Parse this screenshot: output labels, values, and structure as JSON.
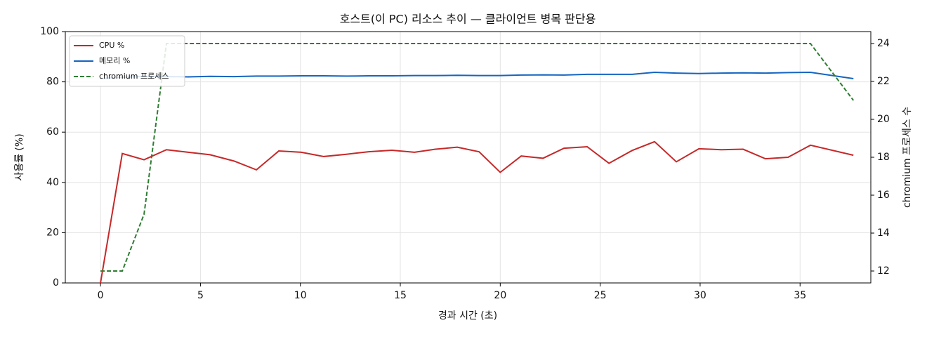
{
  "chart_data": {
    "type": "line",
    "title": "호스트(이 PC) 리소스 추이 — 클라이언트 병목 판단용",
    "x_label": "경과 시간 (초)",
    "y_label": "사용률 (%)",
    "y2_label": "chromium 프로세스 수",
    "x": [
      0,
      1.09,
      2.18,
      3.3,
      4.39,
      5.48,
      6.68,
      7.8,
      8.92,
      10.05,
      11.17,
      12.3,
      13.42,
      14.58,
      15.71,
      16.76,
      17.85,
      18.94,
      20.0,
      21.05,
      22.14,
      23.19,
      24.35,
      25.44,
      26.6,
      27.72,
      28.81,
      29.94,
      31.06,
      32.15,
      33.27,
      34.4,
      35.52,
      37.67
    ],
    "series": [
      {
        "name": "CPU %",
        "color": "#c62828",
        "linestyle": "solid",
        "values": [
          0,
          51.5,
          49,
          53,
          52,
          51,
          48.5,
          45,
          52.5,
          52,
          50.3,
          51.2,
          52.2,
          52.8,
          52,
          53.2,
          54,
          52.2,
          44,
          50.5,
          49.6,
          53.6,
          54.2,
          47.6,
          52.7,
          56.2,
          48.2,
          53.4,
          53,
          53.2,
          49.4,
          50,
          54.8,
          50.8
        ]
      },
      {
        "name": "메모리 %",
        "color": "#1565c0",
        "linestyle": "solid",
        "values": [
          81.3,
          81.8,
          82.2,
          82.1,
          82.0,
          82.2,
          82.1,
          82.3,
          82.3,
          82.4,
          82.4,
          82.3,
          82.4,
          82.4,
          82.5,
          82.5,
          82.6,
          82.5,
          82.5,
          82.7,
          82.8,
          82.7,
          83.0,
          83.0,
          83.0,
          83.8,
          83.5,
          83.3,
          83.5,
          83.6,
          83.5,
          83.7,
          83.8,
          81.3
        ]
      },
      {
        "name": "chromium 프로세스",
        "color": "#2e7d32",
        "linestyle": "dashed",
        "axis": "y2",
        "values": [
          12,
          12,
          15,
          24,
          24,
          24,
          24,
          24,
          24,
          24,
          24,
          24,
          24,
          24,
          24,
          24,
          24,
          24,
          24,
          24,
          24,
          24,
          24,
          24,
          24,
          24,
          24,
          24,
          24,
          24,
          24,
          24,
          24,
          21
        ]
      }
    ],
    "xlim": [
      -1.76,
      38.54
    ],
    "xticks": [
      0,
      5,
      10,
      15,
      20,
      25,
      30,
      35
    ],
    "ylim": [
      0,
      100
    ],
    "yticks": [
      0,
      20,
      40,
      60,
      80,
      100
    ],
    "y2lim": [
      11.37,
      24.63
    ],
    "y2ticks": [
      12,
      14,
      16,
      18,
      20,
      22,
      24
    ],
    "grid": true,
    "legend": "upper left"
  }
}
